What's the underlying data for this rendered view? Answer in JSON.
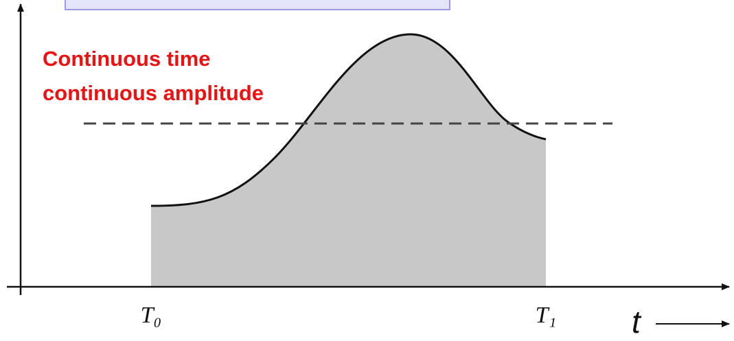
{
  "annotation": {
    "lines": [
      "Continuous time",
      "continuous amplitude"
    ]
  },
  "axis_labels": {
    "start": "T₀",
    "end": "T₁",
    "variable": "t"
  }
}
